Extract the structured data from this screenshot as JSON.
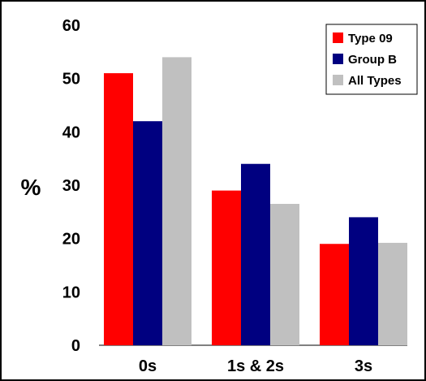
{
  "chart_data": {
    "type": "bar",
    "title": "",
    "xlabel": "",
    "ylabel": "%",
    "ylim": [
      0,
      60
    ],
    "yticks": [
      0,
      10,
      20,
      30,
      40,
      50,
      60
    ],
    "grid": false,
    "legend_position": "top-right",
    "categories": [
      "0s",
      "1s & 2s",
      "3s"
    ],
    "series": [
      {
        "name": "Type 09",
        "color": "#ff0000",
        "values": [
          51,
          29,
          19
        ]
      },
      {
        "name": "Group B",
        "color": "#000080",
        "values": [
          42,
          34,
          24
        ]
      },
      {
        "name": "All Types",
        "color": "#c0c0c0",
        "values": [
          54,
          26.5,
          19.2
        ]
      }
    ]
  }
}
